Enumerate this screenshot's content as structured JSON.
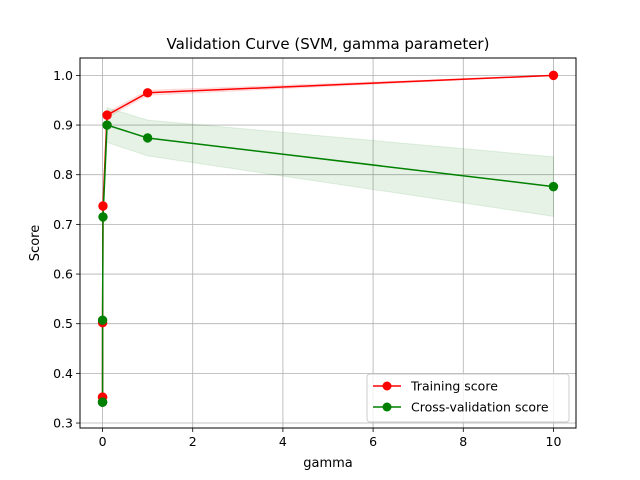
{
  "chart_data": {
    "type": "line",
    "title": "Validation Curve (SVM, gamma parameter)",
    "xlabel": "gamma",
    "ylabel": "Score",
    "xlim": [
      -0.5,
      10.5
    ],
    "ylim": [
      0.29,
      1.035
    ],
    "x_ticks": [
      0,
      2,
      4,
      6,
      8,
      10
    ],
    "x_tick_labels": [
      "0",
      "2",
      "4",
      "6",
      "8",
      "10"
    ],
    "y_ticks": [
      0.3,
      0.4,
      0.5,
      0.6,
      0.7,
      0.8,
      0.9,
      1.0
    ],
    "y_tick_labels": [
      "0.3",
      "0.4",
      "0.5",
      "0.6",
      "0.7",
      "0.8",
      "0.9",
      "1.0"
    ],
    "grid": true,
    "legend_position": "lower-right",
    "x": [
      1e-06,
      1e-05,
      0.0001,
      0.001,
      0.01,
      0.1,
      1,
      10
    ],
    "series": [
      {
        "name": "Training score",
        "color": "#ff0000",
        "values": [
          0.352,
          0.352,
          0.352,
          0.502,
          0.737,
          0.92,
          0.965,
          1.0
        ],
        "band_upper": [
          0.357,
          0.357,
          0.357,
          0.507,
          0.742,
          0.925,
          0.97,
          1.0
        ],
        "band_lower": [
          0.347,
          0.347,
          0.347,
          0.497,
          0.732,
          0.915,
          0.96,
          1.0
        ]
      },
      {
        "name": "Cross-validation score",
        "color": "#008000",
        "values": [
          0.342,
          0.342,
          0.342,
          0.507,
          0.715,
          0.9,
          0.874,
          0.776
        ],
        "band_upper": [
          0.345,
          0.345,
          0.345,
          0.512,
          0.72,
          0.935,
          0.91,
          0.836
        ],
        "band_lower": [
          0.339,
          0.339,
          0.339,
          0.502,
          0.71,
          0.865,
          0.838,
          0.716
        ]
      }
    ]
  }
}
